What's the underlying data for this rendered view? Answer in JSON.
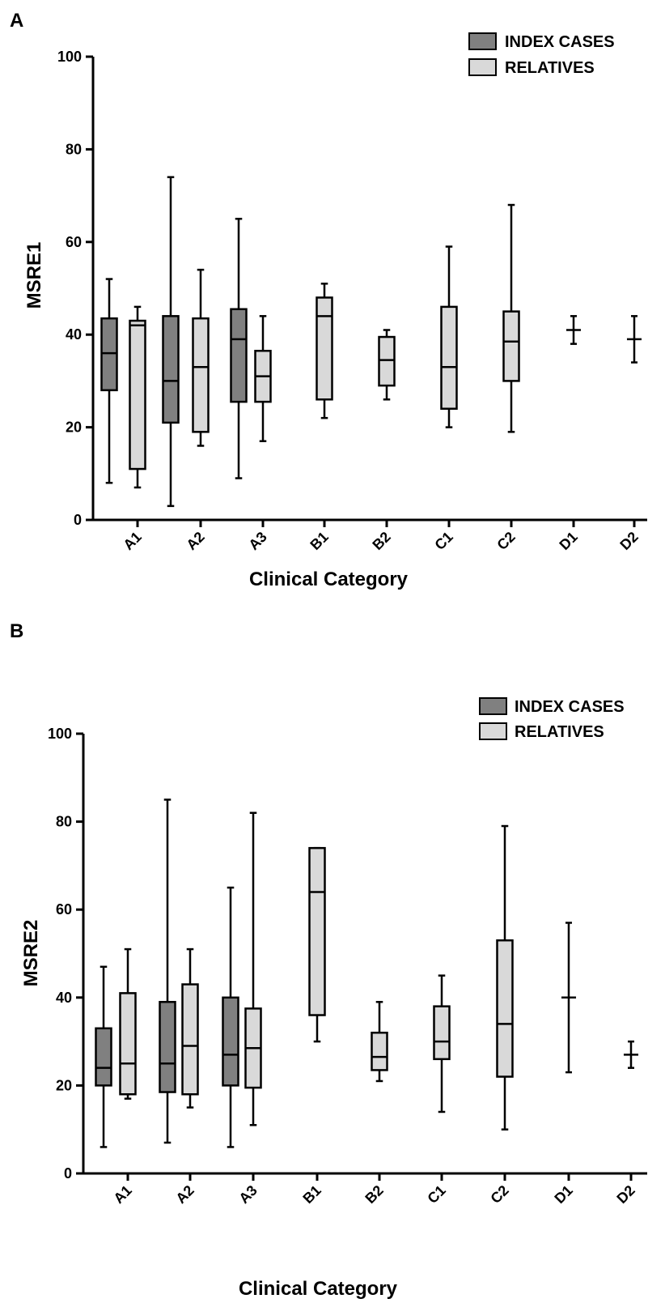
{
  "chart_data": [
    {
      "type": "box",
      "panel": "A",
      "title": "",
      "xlabel": "Clinical  Category",
      "ylabel": "MSRE1",
      "ylim": [
        0,
        100
      ],
      "yticks": [
        0,
        20,
        40,
        60,
        80,
        100
      ],
      "categories": [
        "A1",
        "A2",
        "A3",
        "B1",
        "B2",
        "C1",
        "C2",
        "D1",
        "D2"
      ],
      "legend": {
        "placement": "top-right",
        "items": [
          {
            "label": "INDEX CASES",
            "color": "#808080"
          },
          {
            "label": "RELATIVES",
            "color": "#d9d9d9"
          }
        ]
      },
      "series": [
        {
          "name": "INDEX CASES",
          "color": "#808080",
          "boxes": [
            {
              "category": "A1",
              "min": 8,
              "q1": 28,
              "median": 36,
              "q3": 43.5,
              "max": 52
            },
            {
              "category": "A2",
              "min": 3,
              "q1": 21,
              "median": 30,
              "q3": 44,
              "max": 74
            },
            {
              "category": "A3",
              "min": 9,
              "q1": 25.5,
              "median": 39,
              "q3": 45.5,
              "max": 65
            }
          ]
        },
        {
          "name": "RELATIVES",
          "color": "#d9d9d9",
          "boxes": [
            {
              "category": "A1",
              "min": 7,
              "q1": 11,
              "median": 42,
              "q3": 43,
              "max": 46
            },
            {
              "category": "A2",
              "min": 16,
              "q1": 19,
              "median": 33,
              "q3": 43.5,
              "max": 54
            },
            {
              "category": "A3",
              "min": 17,
              "q1": 25.5,
              "median": 31,
              "q3": 36.5,
              "max": 44
            },
            {
              "category": "B1",
              "min": 22,
              "q1": 26,
              "median": 44,
              "q3": 48,
              "max": 51
            },
            {
              "category": "B2",
              "min": 26,
              "q1": 29,
              "median": 34.5,
              "q3": 39.5,
              "max": 41
            },
            {
              "category": "C1",
              "min": 20,
              "q1": 24,
              "median": 33,
              "q3": 46,
              "max": 59
            },
            {
              "category": "C2",
              "min": 19,
              "q1": 30,
              "median": 38.5,
              "q3": 45,
              "max": 68
            },
            {
              "category": "D1",
              "min": 38,
              "q1": 41,
              "median": 41,
              "q3": 41,
              "max": 44
            },
            {
              "category": "D2",
              "min": 34,
              "q1": 39,
              "median": 39,
              "q3": 39,
              "max": 44
            }
          ]
        }
      ]
    },
    {
      "type": "box",
      "panel": "B",
      "title": "",
      "xlabel": "Clinical  Category",
      "ylabel": "MSRE2",
      "ylim": [
        0,
        100
      ],
      "yticks": [
        0,
        20,
        40,
        60,
        80,
        100
      ],
      "categories": [
        "A1",
        "A2",
        "A3",
        "B1",
        "B2",
        "C1",
        "C2",
        "D1",
        "D2"
      ],
      "legend": {
        "placement": "top-right",
        "items": [
          {
            "label": "INDEX  CASES",
            "color": "#808080"
          },
          {
            "label": "RELATIVES",
            "color": "#d9d9d9"
          }
        ]
      },
      "series": [
        {
          "name": "INDEX  CASES",
          "color": "#808080",
          "boxes": [
            {
              "category": "A1",
              "min": 6,
              "q1": 20,
              "median": 24,
              "q3": 33,
              "max": 47
            },
            {
              "category": "A2",
              "min": 7,
              "q1": 18.5,
              "median": 25,
              "q3": 39,
              "max": 85
            },
            {
              "category": "A3",
              "min": 6,
              "q1": 20,
              "median": 27,
              "q3": 40,
              "max": 65
            }
          ]
        },
        {
          "name": "RELATIVES",
          "color": "#d9d9d9",
          "boxes": [
            {
              "category": "A1",
              "min": 17,
              "q1": 18,
              "median": 25,
              "q3": 41,
              "max": 51
            },
            {
              "category": "A2",
              "min": 15,
              "q1": 18,
              "median": 29,
              "q3": 43,
              "max": 51
            },
            {
              "category": "A3",
              "min": 11,
              "q1": 19.5,
              "median": 28.5,
              "q3": 37.5,
              "max": 82
            },
            {
              "category": "B1",
              "min": 30,
              "q1": 36,
              "median": 64,
              "q3": 74,
              "max": 74
            },
            {
              "category": "B2",
              "min": 21,
              "q1": 23.5,
              "median": 26.5,
              "q3": 32,
              "max": 39
            },
            {
              "category": "C1",
              "min": 14,
              "q1": 26,
              "median": 30,
              "q3": 38,
              "max": 45
            },
            {
              "category": "C2",
              "min": 10,
              "q1": 22,
              "median": 34,
              "q3": 53,
              "max": 79
            },
            {
              "category": "D1",
              "min": 23,
              "q1": 40,
              "median": 40,
              "q3": 40,
              "max": 57
            },
            {
              "category": "D2",
              "min": 24,
              "q1": 27,
              "median": 27,
              "q3": 27,
              "max": 30
            }
          ]
        }
      ]
    }
  ]
}
